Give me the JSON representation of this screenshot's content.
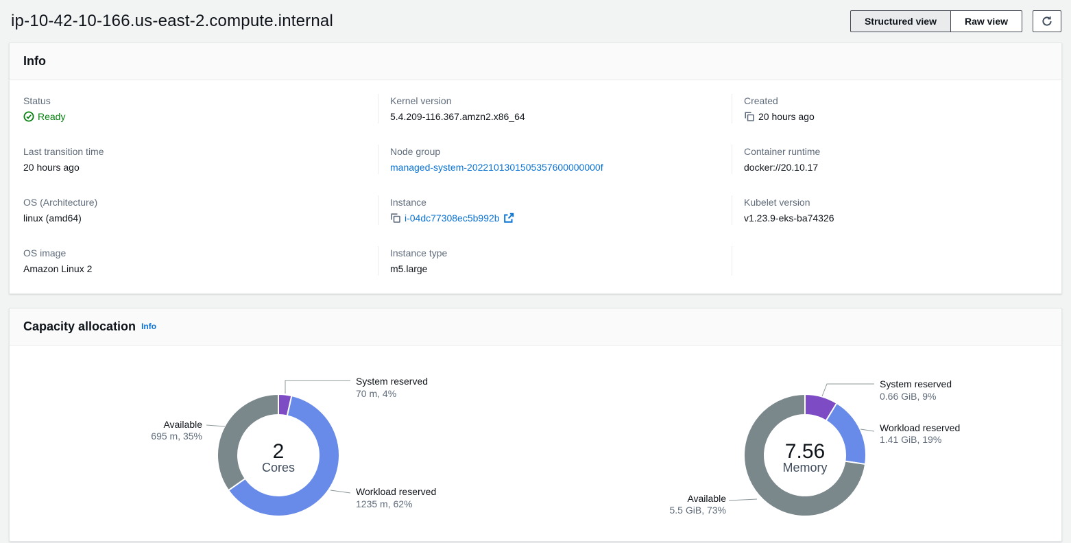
{
  "page": {
    "title": "ip-10-42-10-166.us-east-2.compute.internal"
  },
  "toolbar": {
    "structured_view": "Structured view",
    "raw_view": "Raw view",
    "refresh_icon": "refresh-icon"
  },
  "info_panel": {
    "title": "Info",
    "rows": [
      [
        {
          "label": "Status",
          "value": "Ready",
          "type": "status",
          "status_color": "#037f0c"
        },
        {
          "label": "Kernel version",
          "value": "5.4.209-116.367.amzn2.x86_64",
          "type": "text"
        },
        {
          "label": "Created",
          "value": "20 hours ago",
          "type": "copy-text"
        }
      ],
      [
        {
          "label": "Last transition time",
          "value": "20 hours ago",
          "type": "text"
        },
        {
          "label": "Node group",
          "value": "managed-system-2022101301505357600000000f",
          "type": "link"
        },
        {
          "label": "Container runtime",
          "value": "docker://20.10.17",
          "type": "text"
        }
      ],
      [
        {
          "label": "OS (Architecture)",
          "value": "linux (amd64)",
          "type": "text"
        },
        {
          "label": "Instance",
          "value": "i-04dc77308ec5b992b",
          "type": "copy-link-external"
        },
        {
          "label": "Kubelet version",
          "value": "v1.23.9-eks-ba74326",
          "type": "text"
        }
      ],
      [
        {
          "label": "OS image",
          "value": "Amazon Linux 2",
          "type": "text"
        },
        {
          "label": "Instance type",
          "value": "m5.large",
          "type": "text"
        }
      ]
    ]
  },
  "capacity_panel": {
    "title": "Capacity allocation",
    "info_link": "Info"
  },
  "chart_data": [
    {
      "type": "pie",
      "variant": "donut",
      "title": "Cores capacity allocation",
      "center_value": "2",
      "center_label": "Cores",
      "unit": "m",
      "total": 2000,
      "legend_position": "callout-labels",
      "segments": [
        {
          "name": "System reserved",
          "value": 70,
          "percent": 4,
          "display": "70 m, 4%",
          "color": "#7d4cc4"
        },
        {
          "name": "Workload reserved",
          "value": 1235,
          "percent": 62,
          "display": "1235 m, 62%",
          "color": "#688ae8"
        },
        {
          "name": "Available",
          "value": 695,
          "percent": 35,
          "display": "695 m, 35%",
          "color": "#7a888c"
        }
      ]
    },
    {
      "type": "pie",
      "variant": "donut",
      "title": "Memory capacity allocation",
      "center_value": "7.56",
      "center_label": "Memory",
      "unit": "GiB",
      "total": 7.56,
      "legend_position": "callout-labels",
      "segments": [
        {
          "name": "System reserved",
          "value": 0.66,
          "percent": 9,
          "display": "0.66 GiB, 9%",
          "color": "#7d4cc4"
        },
        {
          "name": "Workload reserved",
          "value": 1.41,
          "percent": 19,
          "display": "1.41 GiB, 19%",
          "color": "#688ae8"
        },
        {
          "name": "Available",
          "value": 5.5,
          "percent": 73,
          "display": "5.5 GiB, 73%",
          "color": "#7a888c"
        }
      ]
    }
  ],
  "colors": {
    "link": "#0972d3",
    "status_ready": "#037f0c",
    "chart_purple": "#7d4cc4",
    "chart_blue": "#688ae8",
    "chart_gray": "#7a888c"
  }
}
